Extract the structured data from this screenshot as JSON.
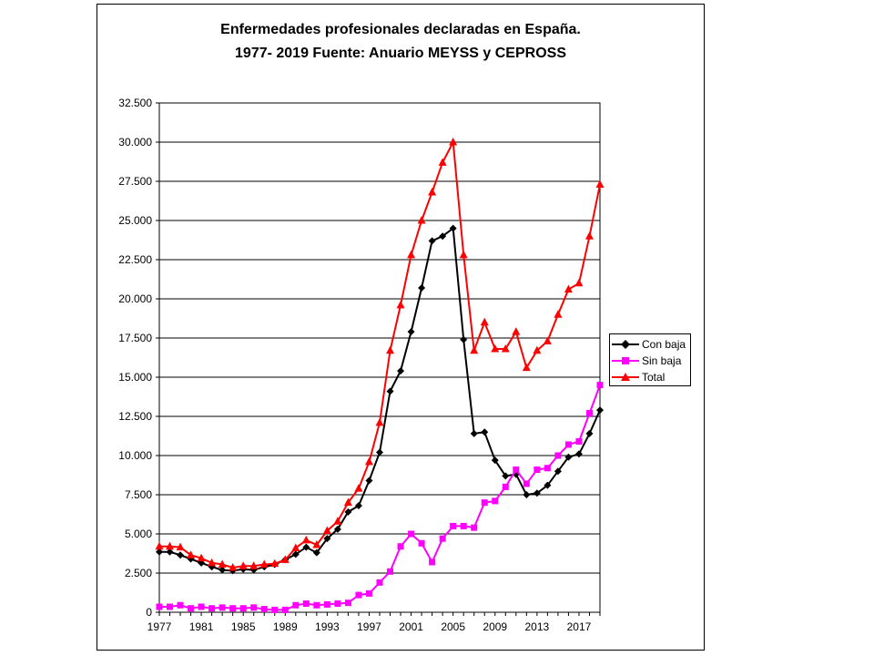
{
  "title_line1": "Enfermedades profesionales declaradas en España.",
  "title_line2": "1977- 2019  Fuente:  Anuario MEYSS y CEPROSS",
  "chart_data": {
    "type": "line",
    "title": "Enfermedades profesionales declaradas en España. 1977- 2019  Fuente:  Anuario MEYSS y CEPROSS",
    "x": [
      1977,
      1978,
      1979,
      1980,
      1981,
      1982,
      1983,
      1984,
      1985,
      1986,
      1987,
      1988,
      1989,
      1990,
      1991,
      1992,
      1993,
      1994,
      1995,
      1996,
      1997,
      1998,
      1999,
      2000,
      2001,
      2002,
      2003,
      2004,
      2005,
      2006,
      2007,
      2008,
      2009,
      2010,
      2011,
      2012,
      2013,
      2014,
      2015,
      2016,
      2017,
      2018,
      2019
    ],
    "x_tick_labels": [
      "1977",
      "1981",
      "1985",
      "1989",
      "1993",
      "1997",
      "2001",
      "2005",
      "2009",
      "2013",
      "2017"
    ],
    "x_tick_values": [
      1977,
      1981,
      1985,
      1989,
      1993,
      1997,
      2001,
      2005,
      2009,
      2013,
      2017
    ],
    "y_tick_labels": [
      "0",
      "2.500",
      "5.000",
      "7.500",
      "10.000",
      "12.500",
      "15.000",
      "17.500",
      "20.000",
      "22.500",
      "25.000",
      "27.500",
      "30.000",
      "32.500"
    ],
    "y_tick_values": [
      0,
      2500,
      5000,
      7500,
      10000,
      12500,
      15000,
      17500,
      20000,
      22500,
      25000,
      27500,
      30000,
      32500
    ],
    "ylim": [
      0,
      32500
    ],
    "xlim": [
      1977,
      2019
    ],
    "grid": "horizontal",
    "legend_position": "right",
    "series": [
      {
        "name": "Con baja",
        "color": "#000000",
        "marker": "diamond",
        "values": [
          3850,
          3850,
          3650,
          3400,
          3150,
          2900,
          2700,
          2650,
          2750,
          2700,
          2900,
          3050,
          3350,
          3700,
          4150,
          3800,
          4700,
          5300,
          6400,
          6800,
          8400,
          10200,
          14100,
          15400,
          17900,
          20700,
          23700,
          24000,
          24500,
          17400,
          11400,
          11500,
          9700,
          8700,
          8800,
          7500,
          7600,
          8100,
          9000,
          9900,
          10100,
          11400,
          12900
        ]
      },
      {
        "name": "Sin baja",
        "color": "#ff00ff",
        "marker": "square",
        "values": [
          350,
          350,
          450,
          250,
          350,
          250,
          300,
          250,
          250,
          300,
          200,
          150,
          150,
          450,
          550,
          450,
          500,
          550,
          600,
          1100,
          1200,
          1900,
          2600,
          4200,
          5000,
          4400,
          3200,
          4700,
          5500,
          5500,
          5400,
          7000,
          7100,
          8000,
          9100,
          8200,
          9100,
          9200,
          10000,
          10700,
          10900,
          12700,
          14500
        ]
      },
      {
        "name": "Total",
        "color": "#ff0000",
        "marker": "triangle",
        "values": [
          4200,
          4200,
          4150,
          3650,
          3450,
          3150,
          3050,
          2850,
          2950,
          2950,
          3050,
          3100,
          3350,
          4100,
          4600,
          4300,
          5200,
          5800,
          7000,
          7900,
          9600,
          12100,
          16700,
          19600,
          22800,
          25000,
          26800,
          28700,
          30000,
          22800,
          16700,
          18500,
          16800,
          16800,
          17900,
          15600,
          16700,
          17300,
          19000,
          20600,
          21000,
          24000,
          27300
        ]
      }
    ]
  }
}
